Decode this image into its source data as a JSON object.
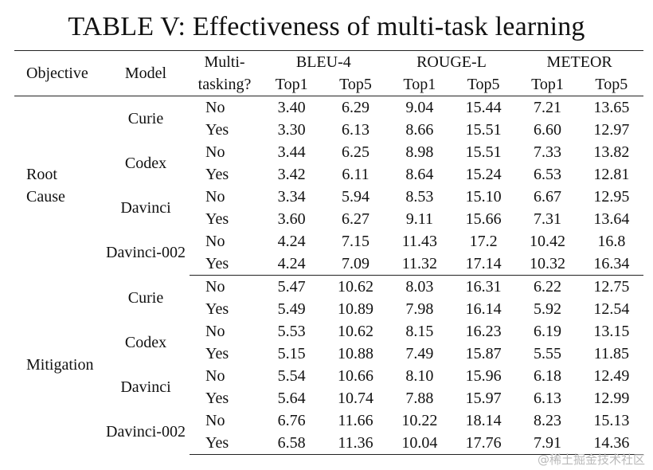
{
  "title": "TABLE V: Effectiveness of multi-task learning",
  "header": {
    "objective": "Objective",
    "model": "Model",
    "multi_line1": "Multi-",
    "multi_line2": "tasking?",
    "metrics": [
      "BLEU-4",
      "ROUGE-L",
      "METEOR"
    ],
    "sub": [
      "Top1",
      "Top5",
      "Top1",
      "Top5",
      "Top1",
      "Top5"
    ]
  },
  "sections": [
    {
      "objective_lines": [
        "Root",
        "Cause"
      ],
      "models": [
        {
          "name": "Curie",
          "rows": [
            {
              "mt": "No",
              "values": [
                "3.40",
                "6.29",
                "9.04",
                "15.44",
                "7.21",
                "13.65"
              ],
              "bold": [
                false,
                false,
                false,
                false,
                false,
                false
              ]
            },
            {
              "mt": "Yes",
              "values": [
                "3.30",
                "6.13",
                "8.66",
                "15.51",
                "6.60",
                "12.97"
              ],
              "bold": [
                false,
                false,
                false,
                false,
                false,
                false
              ]
            }
          ]
        },
        {
          "name": "Codex",
          "rows": [
            {
              "mt": "No",
              "values": [
                "3.44",
                "6.25",
                "8.98",
                "15.51",
                "7.33",
                "13.82"
              ],
              "bold": [
                false,
                false,
                false,
                false,
                false,
                false
              ]
            },
            {
              "mt": "Yes",
              "values": [
                "3.42",
                "6.11",
                "8.64",
                "15.24",
                "6.53",
                "12.81"
              ],
              "bold": [
                false,
                false,
                false,
                false,
                false,
                false
              ]
            }
          ]
        },
        {
          "name": "Davinci",
          "rows": [
            {
              "mt": "No",
              "values": [
                "3.34",
                "5.94",
                "8.53",
                "15.10",
                "6.67",
                "12.95"
              ],
              "bold": [
                false,
                false,
                false,
                false,
                false,
                false
              ]
            },
            {
              "mt": "Yes",
              "values": [
                "3.60",
                "6.27",
                "9.11",
                "15.66",
                "7.31",
                "13.64"
              ],
              "bold": [
                false,
                false,
                false,
                false,
                false,
                false
              ]
            }
          ]
        },
        {
          "name": "Davinci-002",
          "rows": [
            {
              "mt": "No",
              "values": [
                "4.24",
                "7.15",
                "11.43",
                "17.2",
                "10.42",
                "16.8"
              ],
              "bold": [
                true,
                true,
                true,
                true,
                true,
                true
              ]
            },
            {
              "mt": "Yes",
              "values": [
                "4.24",
                "7.09",
                "11.32",
                "17.14",
                "10.32",
                "16.34"
              ],
              "bold": [
                true,
                false,
                false,
                false,
                false,
                false
              ]
            }
          ]
        }
      ]
    },
    {
      "objective_lines": [
        "Mitigation"
      ],
      "models": [
        {
          "name": "Curie",
          "rows": [
            {
              "mt": "No",
              "values": [
                "5.47",
                "10.62",
                "8.03",
                "16.31",
                "6.22",
                "12.75"
              ],
              "bold": [
                false,
                false,
                false,
                false,
                false,
                false
              ]
            },
            {
              "mt": "Yes",
              "values": [
                "5.49",
                "10.89",
                "7.98",
                "16.14",
                "5.92",
                "12.54"
              ],
              "bold": [
                false,
                false,
                false,
                false,
                false,
                false
              ]
            }
          ]
        },
        {
          "name": "Codex",
          "rows": [
            {
              "mt": "No",
              "values": [
                "5.53",
                "10.62",
                "8.15",
                "16.23",
                "6.19",
                "13.15"
              ],
              "bold": [
                false,
                false,
                false,
                false,
                false,
                false
              ]
            },
            {
              "mt": "Yes",
              "values": [
                "5.15",
                "10.88",
                "7.49",
                "15.87",
                "5.55",
                "11.85"
              ],
              "bold": [
                false,
                false,
                false,
                false,
                false,
                false
              ]
            }
          ]
        },
        {
          "name": "Davinci",
          "rows": [
            {
              "mt": "No",
              "values": [
                "5.54",
                "10.66",
                "8.10",
                "15.96",
                "6.18",
                "12.49"
              ],
              "bold": [
                false,
                false,
                false,
                false,
                false,
                false
              ]
            },
            {
              "mt": "Yes",
              "values": [
                "5.64",
                "10.74",
                "7.88",
                "15.97",
                "6.13",
                "12.99"
              ],
              "bold": [
                false,
                false,
                false,
                false,
                false,
                false
              ]
            }
          ]
        },
        {
          "name": "Davinci-002",
          "rows": [
            {
              "mt": "No",
              "values": [
                "6.76",
                "11.66",
                "10.22",
                "18.14",
                "8.23",
                "15.13"
              ],
              "bold": [
                true,
                true,
                true,
                true,
                true,
                true
              ]
            },
            {
              "mt": "Yes",
              "values": [
                "6.58",
                "11.36",
                "10.04",
                "17.76",
                "7.91",
                "14.36"
              ],
              "bold": [
                false,
                false,
                false,
                false,
                false,
                false
              ]
            }
          ]
        }
      ]
    }
  ],
  "watermark": "@稀土掘金技术社区"
}
